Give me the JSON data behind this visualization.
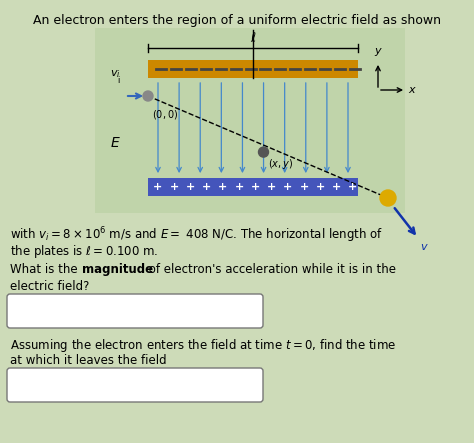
{
  "title": "An electron enters the region of a uniform electric field as shown",
  "bg_color": "#cddbb8",
  "diagram_bg": "#b8cca8",
  "top_plate_color": "#c8860a",
  "bottom_plate_color": "#5566cc",
  "field_line_color": "#4488cc",
  "text1a": "with $v_i = 8 \\times 10^6$ m/s and $E =$ 408 N/C. The horizontal length of",
  "text1b": "the plates is $\\ell = 0.100$ m.",
  "text2a": "What is the ",
  "text2b": "magnitude",
  "text2c": " of electron's acceleration while it is in the",
  "text2d": "electric field?",
  "text3a": "Assuming the electron enters the field at time $t = 0$, find the time",
  "text3b": "at which it leaves the field"
}
